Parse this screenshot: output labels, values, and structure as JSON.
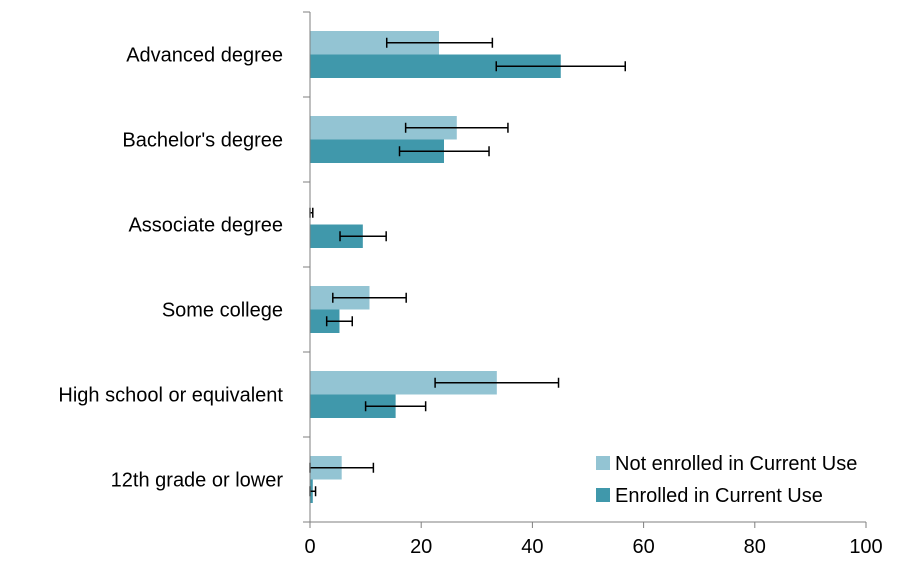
{
  "chart_data": {
    "type": "bar",
    "orientation": "horizontal",
    "categories": [
      "Advanced degree",
      "Bachelor's degree",
      "Associate degree",
      "Some college",
      "High school or equivalent",
      "12th grade or lower"
    ],
    "series": [
      {
        "name": "Not enrolled in Current Use",
        "color": "#93c4d3",
        "values": [
          23.2,
          26.4,
          0,
          10.7,
          33.6,
          5.7
        ],
        "error_low": [
          13.8,
          17.2,
          0,
          4.1,
          22.5,
          0
        ],
        "error_high": [
          32.8,
          35.6,
          0.5,
          17.3,
          44.7,
          11.4
        ]
      },
      {
        "name": "Enrolled in Current Use",
        "color": "#4098ab",
        "values": [
          45.1,
          24.1,
          9.5,
          5.3,
          15.4,
          0.5
        ],
        "error_low": [
          33.5,
          16.1,
          5.4,
          3.0,
          10.0,
          0
        ],
        "error_high": [
          56.7,
          32.2,
          13.7,
          7.6,
          20.8,
          1.0
        ]
      }
    ],
    "xlim": [
      0,
      100
    ],
    "xticks": [
      0,
      20,
      40,
      60,
      80,
      100
    ],
    "title": "",
    "xlabel": "",
    "ylabel": "",
    "grid": false,
    "legend_position": "bottom-right"
  }
}
